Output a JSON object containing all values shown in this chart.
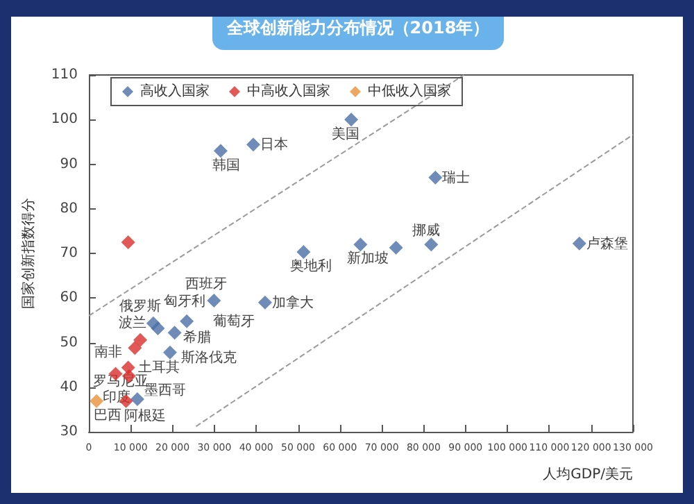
{
  "chart_data": {
    "type": "scatter",
    "title": "全球创新能力分布情况（2018年）",
    "xlabel": "人均GDP/美元",
    "ylabel": "国家创新指数得分",
    "xlim": [
      0,
      130000
    ],
    "ylim": [
      30,
      110
    ],
    "xticks": [
      0,
      {
        "value": 10000,
        "label": "10 000"
      },
      {
        "value": 20000,
        "label": "20 000"
      },
      {
        "value": 30000,
        "label": "30 000"
      },
      {
        "value": 40000,
        "label": "40 000"
      },
      {
        "value": 50000,
        "label": "50 000"
      },
      {
        "value": 60000,
        "label": "60 000"
      },
      {
        "value": 70000,
        "label": "70 000"
      },
      {
        "value": 80000,
        "label": "80 000"
      },
      {
        "value": 90000,
        "label": "90 000"
      },
      {
        "value": 100000,
        "label": "100 000"
      },
      {
        "value": 110000,
        "label": "110 000"
      },
      {
        "value": 120000,
        "label": "120 000"
      },
      {
        "value": 130000,
        "label": "130 000"
      }
    ],
    "yticks": [
      30,
      40,
      50,
      60,
      70,
      80,
      90,
      100,
      110
    ],
    "grid": false,
    "legend": "top left",
    "marker": "diamond",
    "series": [
      {
        "name": "高收入国家",
        "color": "#4a6fa5",
        "x": [
          31500,
          39300,
          62700,
          82800,
          11600,
          15400,
          16500,
          20500,
          23400,
          19400,
          29900,
          42100,
          51300,
          64900,
          73400,
          81800,
          117200
        ],
        "values": [
          93,
          94.4,
          100,
          87,
          37.3,
          54.3,
          53.2,
          52.2,
          54.8,
          47.8,
          59.4,
          59,
          70.3,
          72,
          71.3,
          72,
          72.2
        ]
      },
      {
        "name": "中高收入国家",
        "color": "#d9302c",
        "x": [
          8900,
          6400,
          9600,
          9400,
          11000,
          12300,
          9400
        ],
        "values": [
          36.9,
          43,
          42.5,
          44.4,
          48.8,
          50.6,
          72.5
        ]
      },
      {
        "name": "中低收入国家",
        "color": "#e8913a",
        "x": [
          1850
        ],
        "values": [
          36.9
        ]
      },
      {
        "type": "line",
        "color": "#9a9a9a",
        "line_style": "dashed",
        "marker": "none",
        "x": [
          0,
          89600
        ],
        "values": [
          56,
          110
        ]
      },
      {
        "type": "line",
        "color": "#9a9a9a",
        "line_style": "dashed",
        "marker": "none",
        "x": [
          25600,
          130000
        ],
        "values": [
          31.2,
          96.6
        ]
      }
    ],
    "annotations": [
      {
        "text": "韩国",
        "x": 31500,
        "y": 93
      },
      {
        "text": "日本",
        "x": 39300,
        "y": 94.4
      },
      {
        "text": "美国",
        "x": 62700,
        "y": 100
      },
      {
        "text": "瑞士",
        "x": 82800,
        "y": 87
      },
      {
        "text": "阿根廷",
        "x": 11600,
        "y": 37.3
      },
      {
        "text": "匈牙利",
        "x": 15400,
        "y": 54.3
      },
      {
        "text": "波兰",
        "x": 16500,
        "y": 53.2
      },
      {
        "text": "希腊",
        "x": 20500,
        "y": 52.2
      },
      {
        "text": "葡萄牙",
        "x": 23400,
        "y": 54.8
      },
      {
        "text": "斯洛伐克",
        "x": 19400,
        "y": 47.8
      },
      {
        "text": "西班牙",
        "x": 29900,
        "y": 59.4
      },
      {
        "text": "加拿大",
        "x": 42100,
        "y": 59
      },
      {
        "text": "奥地利",
        "x": 51300,
        "y": 70.3
      },
      {
        "text": "新加坡",
        "x": 64900,
        "y": 72
      },
      {
        "text": "挪威",
        "x": 81800,
        "y": 72
      },
      {
        "text": "卢森堡",
        "x": 117200,
        "y": 72.2
      },
      {
        "text": "巴西",
        "x": 8900,
        "y": 36.9
      },
      {
        "text": "南非",
        "x": 6400,
        "y": 43
      },
      {
        "text": "墨西哥",
        "x": 9600,
        "y": 42.5
      },
      {
        "text": "土耳其",
        "x": 9400,
        "y": 44.4
      },
      {
        "text": "罗马尼亚",
        "x": 11000,
        "y": 48.8
      },
      {
        "text": "俄罗斯",
        "x": 12300,
        "y": 50.6
      },
      {
        "text": "印度",
        "x": 1850,
        "y": 36.9
      }
    ]
  }
}
